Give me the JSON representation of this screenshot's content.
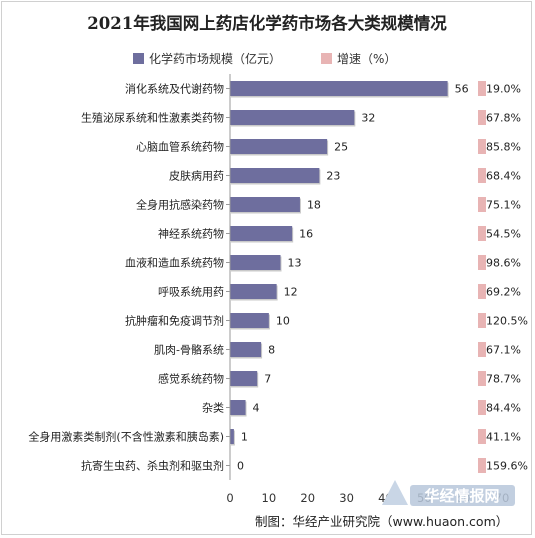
{
  "chart_data": {
    "type": "bar",
    "title": "2021年我国网上药店化学药市场各大类规模情况",
    "legend": [
      "化学药市场规模（亿元）",
      "增速（%）"
    ],
    "categories": [
      "消化系统及代谢药物",
      "生殖泌尿系统和性激素类药物",
      "心脑血管系统药物",
      "皮肤病用药",
      "全身用抗感染药物",
      "神经系统药物",
      "血液和造血系统药物",
      "呼吸系统用药",
      "抗肿瘤和免疫调节剂",
      "肌肉-骨骼系统",
      "感觉系统药物",
      "杂类",
      "全身用激素类制剂(不含性激素和胰岛素)",
      "抗寄生虫药、杀虫剂和驱虫剂"
    ],
    "series": [
      {
        "name": "化学药市场规模（亿元）",
        "values": [
          56,
          32,
          25,
          23,
          18,
          16,
          13,
          12,
          10,
          8,
          7,
          4,
          1,
          0
        ]
      },
      {
        "name": "增速（%）",
        "values": [
          "19.0%",
          "67.8%",
          "85.8%",
          "68.4%",
          "75.1%",
          "54.5%",
          "98.6%",
          "69.2%",
          "120.5%",
          "67.1%",
          "78.7%",
          "84.4%",
          "41.1%",
          "159.6%"
        ]
      }
    ],
    "xticks": [
      0,
      10,
      20,
      30,
      40,
      50,
      60,
      70
    ],
    "xlim": [
      0,
      70
    ],
    "grid": false,
    "legend_position": "top",
    "colors": {
      "bar": "#6e6e9e",
      "growth_marker": "#e8b4b4"
    }
  },
  "source": "制图：华经产业研究院（www.huaon.com）",
  "watermark": {
    "brand": "华经情报网",
    "url": "www.huaon.com"
  }
}
